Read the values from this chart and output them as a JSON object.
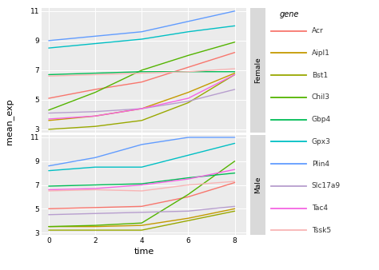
{
  "time_points": [
    0,
    2,
    4,
    6,
    8
  ],
  "genes": [
    "Acr",
    "Aipl1",
    "Bst1",
    "Chil3",
    "Gbp4",
    "Gpx3",
    "Plin4",
    "Slc17a9",
    "Tac4",
    "Tssk5"
  ],
  "colors_list": {
    "Acr": "#f8766d",
    "Aipl1": "#c49a00",
    "Bst1": "#99a800",
    "Chil3": "#53b400",
    "Gbp4": "#00bc56",
    "Gpx3": "#00bfc4",
    "Plin4": "#619cff",
    "Slc17a9": "#b79ece",
    "Tac4": "#f564e3",
    "Tssk5": "#f8b4b4"
  },
  "female": {
    "Acr": [
      5.1,
      5.7,
      6.2,
      7.2,
      8.2
    ],
    "Aipl1": [
      3.6,
      3.9,
      4.4,
      5.5,
      6.8
    ],
    "Bst1": [
      3.0,
      3.2,
      3.6,
      4.8,
      6.7
    ],
    "Chil3": [
      4.3,
      5.5,
      7.0,
      8.0,
      8.9
    ],
    "Gbp4": [
      6.7,
      6.8,
      6.9,
      6.9,
      6.9
    ],
    "Gpx3": [
      8.5,
      8.8,
      9.1,
      9.6,
      10.0
    ],
    "Plin4": [
      9.0,
      9.3,
      9.6,
      10.3,
      11.0
    ],
    "Slc17a9": [
      4.1,
      4.2,
      4.4,
      4.9,
      5.7
    ],
    "Tac4": [
      3.7,
      3.9,
      4.4,
      5.1,
      6.7
    ],
    "Tssk5": [
      6.6,
      6.7,
      6.8,
      6.9,
      7.1
    ]
  },
  "male": {
    "Acr": [
      5.0,
      5.1,
      5.2,
      6.0,
      7.2
    ],
    "Aipl1": [
      3.5,
      3.5,
      3.6,
      4.2,
      5.0
    ],
    "Bst1": [
      3.2,
      3.2,
      3.2,
      4.0,
      4.8
    ],
    "Chil3": [
      3.5,
      3.6,
      3.8,
      6.2,
      9.0
    ],
    "Gbp4": [
      6.9,
      7.0,
      7.1,
      7.6,
      8.0
    ],
    "Gpx3": [
      8.2,
      8.5,
      8.5,
      9.5,
      10.5
    ],
    "Plin4": [
      8.6,
      9.3,
      10.4,
      11.0,
      11.0
    ],
    "Slc17a9": [
      4.5,
      4.6,
      4.7,
      4.8,
      5.2
    ],
    "Tac4": [
      6.6,
      6.7,
      7.0,
      7.5,
      8.3
    ],
    "Tssk5": [
      6.5,
      6.6,
      6.5,
      7.0,
      7.3
    ]
  },
  "ylim": [
    2.8,
    11.2
  ],
  "yticks": [
    3,
    5,
    7,
    9,
    11
  ],
  "xticks": [
    0,
    2,
    4,
    6,
    8
  ],
  "xlabel": "time",
  "ylabel": "mean_exp",
  "bg_color": "#ebebeb",
  "panel_label_color": "#d9d9d9",
  "panel_labels": [
    "Female",
    "Male"
  ]
}
